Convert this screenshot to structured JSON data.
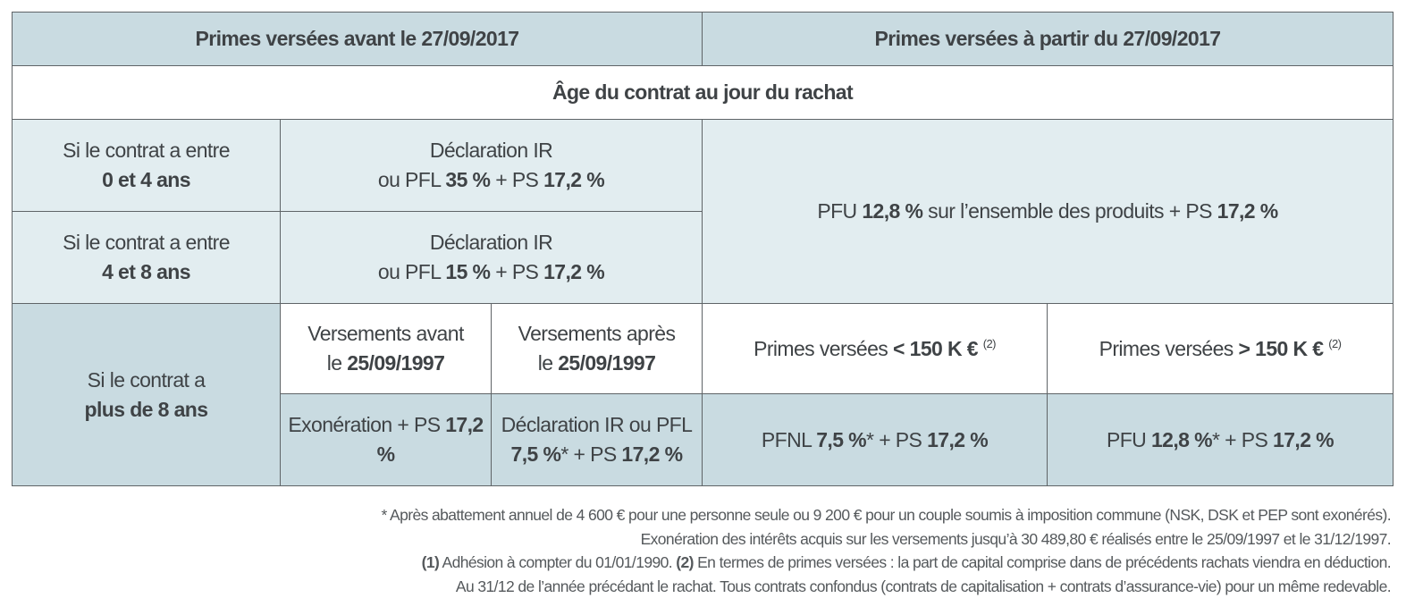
{
  "header": {
    "left": "Primes versées avant le 27/09/2017",
    "right": "Primes versées à partir du 27/09/2017"
  },
  "subheader": "Âge du contrat au jour du rachat",
  "rows": {
    "r0_4": {
      "label_line1": "Si le contrat a entre",
      "label_line2": "0 et 4 ans",
      "decl_line1": "Déclaration IR",
      "decl_pre": "ou PFL ",
      "decl_rate": "35 %",
      "decl_mid": " + PS ",
      "decl_ps": "17,2 %"
    },
    "r4_8": {
      "label_line1": "Si le contrat a entre",
      "label_line2": "4 et 8 ans",
      "decl_line1": "Déclaration IR",
      "decl_pre": "ou PFL ",
      "decl_rate": "15 %",
      "decl_mid": " + PS ",
      "decl_ps": "17,2 %"
    },
    "pfu_right": {
      "pre": "PFU ",
      "rate": "12,8 %",
      "mid": " sur l’ensemble des produits + PS ",
      "ps": "17,2 %"
    },
    "r8": {
      "label_line1": "Si le contrat a",
      "label_line2": "plus de 8 ans",
      "col_avant_line1": "Versements avant",
      "col_avant_pre": "le ",
      "col_avant_date": "25/09/1997",
      "col_apres_line1": "Versements après",
      "col_apres_pre": "le ",
      "col_apres_date": "25/09/1997",
      "primes_lt_pre": "Primes versées ",
      "primes_lt_val": "< 150 K €",
      "primes_lt_note": "(2)",
      "primes_gt_pre": "Primes versées ",
      "primes_gt_val": "> 150 K €",
      "primes_gt_note": "(2)",
      "exo_pre": "Exonération + PS ",
      "exo_ps": "17,2 %",
      "decl_line1": "Déclaration IR ou PFL",
      "decl_rate": "7,5 %",
      "decl_mid": "* + PS ",
      "decl_ps": "17,2 %",
      "pfnl_pre": "PFNL ",
      "pfnl_rate": "7,5 %",
      "pfnl_mid": "* + PS ",
      "pfnl_ps": "17,2 %",
      "pfu_pre": "PFU ",
      "pfu_rate": "12,8 %",
      "pfu_mid": "* + PS ",
      "pfu_ps": "17,2 %"
    }
  },
  "notes": {
    "line1": "* Après abattement annuel de 4 600 € pour une personne seule ou 9 200 € pour un couple soumis à imposition commune (NSK, DSK et PEP sont exonérés).",
    "line2": "Exonération des intérêts acquis sur les versements jusqu’à 30 489,80 € réalisés entre le 25/09/1997 et le 31/12/1997.",
    "line3_mark1": "(1)",
    "line3_text1": " Adhésion à compter du 01/01/1990. ",
    "line3_mark2": "(2)",
    "line3_text2": " En termes de primes versées : la part de capital comprise dans de précédents rachats viendra en déduction.",
    "line4": "Au 31/12 de l’année précédant le rachat. Tous contrats confondus (contrats de capitalisation + contrats d’assurance-vie) pour un même redevable."
  }
}
